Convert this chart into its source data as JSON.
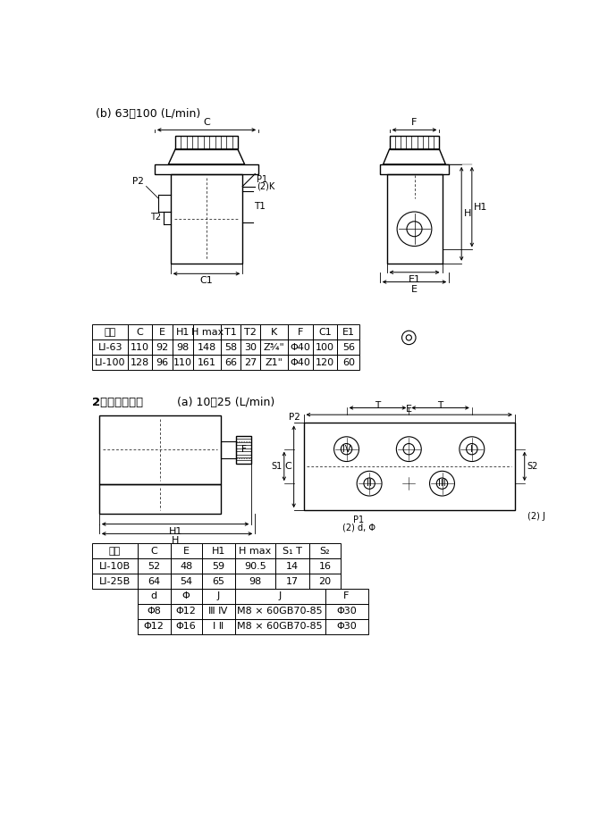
{
  "bg_color": "#ffffff",
  "table1_headers": [
    "型号",
    "C",
    "E",
    "H1",
    "H max",
    "T1",
    "T2",
    "K",
    "F",
    "C1",
    "E1"
  ],
  "table1_rows": [
    [
      "LI-63",
      "110",
      "92",
      "98",
      "148",
      "58",
      "30",
      "Z¾\"",
      "Φ40",
      "100",
      "56"
    ],
    [
      "LI-100",
      "128",
      "96",
      "110",
      "161",
      "66",
      "27",
      "Z1\"",
      "Φ40",
      "120",
      "60"
    ]
  ],
  "table2_headers": [
    "型号",
    "C",
    "E",
    "H1",
    "H max",
    "S₁ T",
    "S₂"
  ],
  "table2_rows": [
    [
      "LI-10B",
      "52",
      "48",
      "59",
      "90.5",
      "14",
      "16"
    ],
    [
      "LI-25B",
      "64",
      "54",
      "65",
      "98",
      "17",
      "20"
    ]
  ],
  "table3_headers": [
    "d",
    "Φ",
    "J",
    "J",
    "F"
  ],
  "table3_rows": [
    [
      "Φ8",
      "Φ12",
      "Ⅲ Ⅳ",
      "M8 × 60GB70-85",
      "Φ30"
    ],
    [
      "Φ12",
      "Φ16",
      "Ⅰ Ⅱ",
      "M8 × 60GB70-85",
      "Φ30"
    ]
  ]
}
